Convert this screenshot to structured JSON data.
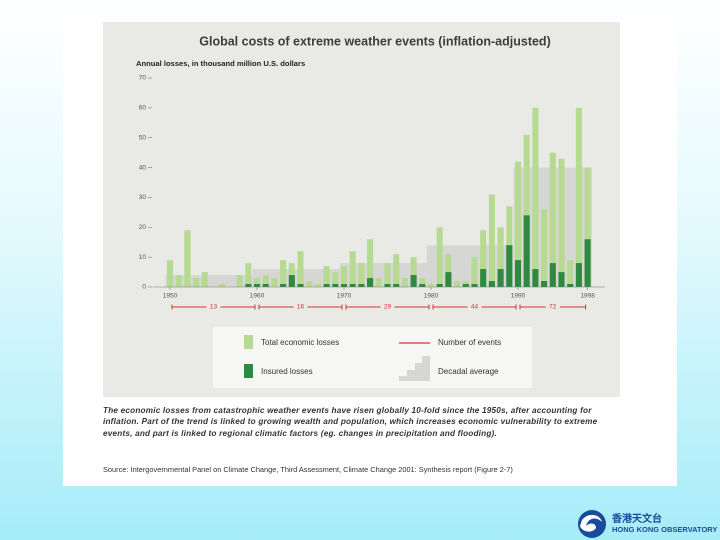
{
  "chart_data": {
    "type": "bar",
    "title": "Global costs of extreme weather events (inflation-adjusted)",
    "subtitle": "Annual losses, in thousand million U.S. dollars",
    "x": [
      1950,
      1951,
      1952,
      1953,
      1954,
      1955,
      1956,
      1957,
      1958,
      1959,
      1960,
      1961,
      1962,
      1963,
      1964,
      1965,
      1966,
      1967,
      1968,
      1969,
      1970,
      1971,
      1972,
      1973,
      1974,
      1975,
      1976,
      1977,
      1978,
      1979,
      1980,
      1981,
      1982,
      1983,
      1984,
      1985,
      1986,
      1987,
      1988,
      1989,
      1990,
      1991,
      1992,
      1993,
      1994,
      1995,
      1996,
      1997,
      1998
    ],
    "series": [
      {
        "name": "Total economic losses",
        "color": "#b7da92",
        "values": [
          9,
          4,
          19,
          3,
          5,
          0,
          1,
          0,
          4,
          8,
          3,
          4,
          3,
          9,
          8,
          12,
          2,
          1,
          7,
          5,
          7,
          12,
          8,
          16,
          3,
          8,
          11,
          3,
          10,
          3,
          1,
          20,
          11,
          2,
          2,
          10,
          19,
          31,
          20,
          27,
          42,
          51,
          60,
          26,
          45,
          43,
          9,
          60,
          40
        ]
      },
      {
        "name": "Insured losses",
        "color": "#2f8a3f",
        "values": [
          0,
          0,
          0,
          0,
          0,
          0,
          0,
          0,
          0,
          1,
          1,
          1,
          0,
          1,
          4,
          1,
          0,
          0,
          1,
          1,
          1,
          1,
          1,
          3,
          0,
          1,
          1,
          0,
          4,
          1,
          0,
          1,
          5,
          0,
          1,
          1,
          6,
          2,
          6,
          14,
          9,
          24,
          6,
          2,
          8,
          5,
          1,
          8,
          16
        ]
      }
    ],
    "decadal_average": {
      "name": "Decadal average",
      "color": "#d6d6d4",
      "x": [
        1950,
        1960,
        1970,
        1980,
        1990
      ],
      "values": [
        4,
        6,
        8,
        14,
        40
      ]
    },
    "events": {
      "name": "Number of events",
      "color": "#cc3b30",
      "values": [
        13,
        16,
        29,
        44,
        72
      ]
    },
    "xlim": [
      1948,
      2000
    ],
    "xticks": [
      1950,
      1960,
      1970,
      1980,
      1990,
      1998
    ],
    "ylim": [
      0,
      70
    ],
    "yticks": [
      0,
      10,
      20,
      30,
      40,
      50,
      60,
      70
    ]
  },
  "caption": "The economic losses from catastrophic weather events have risen globally 10-fold since the 1950s, after accounting for inflation. Part of the trend is linked to growing wealth and population, which increases economic vulnerability to extreme events, and part is linked to regional climatic factors (eg. changes in precipitation and flooding).",
  "source": "Source: Intergovernmental Panel on Climate Change, Third Assessment, Climate Change 2001: Synthesis report (Figure 2-7)",
  "logo": {
    "chinese": "香港天文台",
    "english": "HONG KONG OBSERVATORY"
  }
}
